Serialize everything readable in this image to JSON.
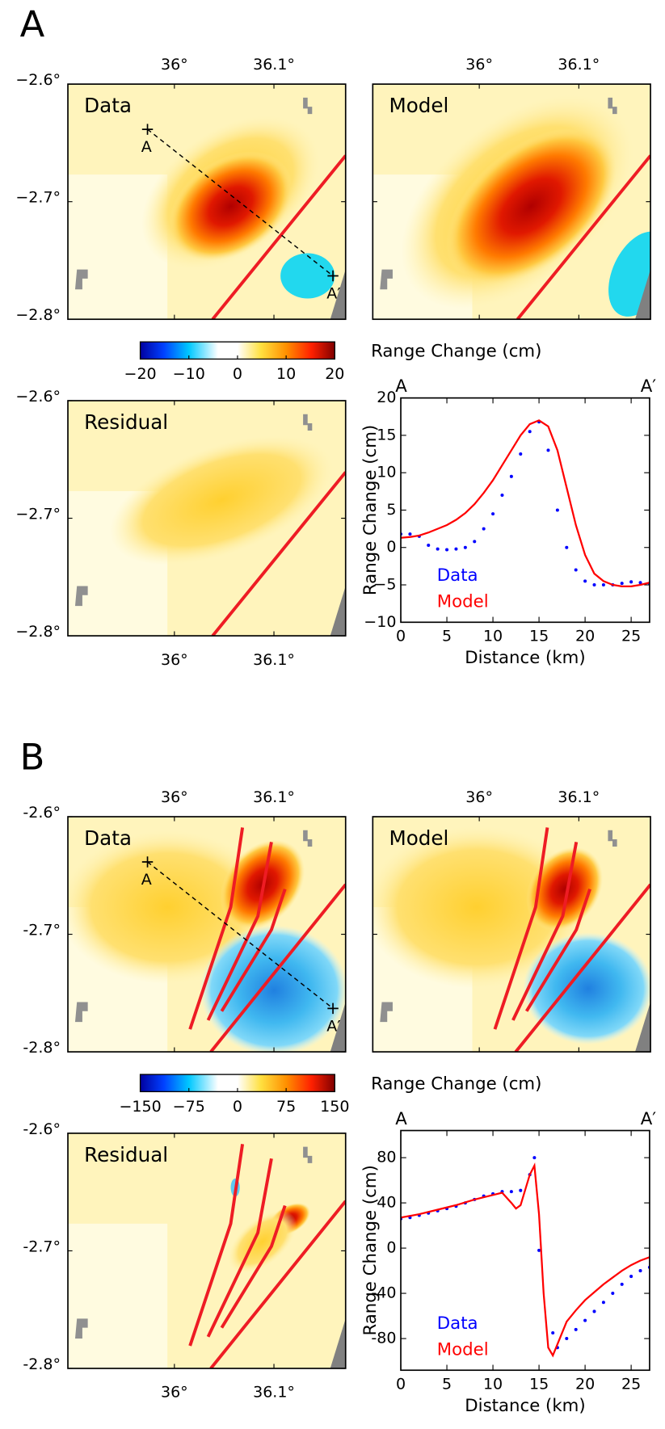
{
  "figure": {
    "map_xlim": [
      35.893,
      36.172
    ],
    "map_ylim": [
      -2.8,
      -2.6
    ],
    "panels": [
      {
        "label": "A",
        "maps": [
          "Data",
          "Model",
          "Residual"
        ],
        "xticks": [
          {
            "value": 36,
            "label": "36°"
          },
          {
            "value": 36.1,
            "label": "36.1°"
          }
        ],
        "yticks": [
          {
            "value": -2.6,
            "label": "−2.6°"
          },
          {
            "value": -2.7,
            "label": "−2.7°"
          },
          {
            "value": -2.8,
            "label": "−2.8°"
          }
        ],
        "profile_ends": [
          "A",
          "A′"
        ],
        "colorbar": {
          "label": "Range Change (cm)",
          "lim": [
            -20,
            20
          ],
          "ticks": [
            {
              "value": -20,
              "label": "−20"
            },
            {
              "value": -10,
              "label": "−10"
            },
            0,
            10,
            20
          ]
        }
      },
      {
        "label": "B",
        "maps": [
          "Data",
          "Model",
          "Residual"
        ],
        "xticks": [
          {
            "value": 36,
            "label": "36°"
          },
          {
            "value": 36.1,
            "label": "36.1°"
          }
        ],
        "yticks": [
          {
            "value": -2.6,
            "label": "-2.6°"
          },
          {
            "value": -2.7,
            "label": "-2.7°"
          },
          {
            "value": -2.8,
            "label": "-2.8°"
          }
        ],
        "profile_ends": [
          "A",
          "A′"
        ],
        "colorbar": {
          "label": "Range Change (cm)",
          "lim": [
            -150,
            150
          ],
          "ticks": [
            {
              "value": -150,
              "label": "−150"
            },
            {
              "value": -75,
              "label": "−75"
            },
            0,
            75,
            150
          ]
        }
      }
    ]
  },
  "chart_data": [
    {
      "type": "line",
      "xlabel": "Distance (km)",
      "ylabel": "Range Change (cm)",
      "xlim": [
        0,
        27
      ],
      "ylim": [
        -10,
        20
      ],
      "xticks": [
        0,
        5,
        10,
        15,
        20,
        25
      ],
      "yticks": [
        {
          "value": -10,
          "label": "−10"
        },
        {
          "value": -5,
          "label": "−5"
        },
        0,
        5,
        10,
        15,
        20
      ],
      "legend": "lower left",
      "series": [
        {
          "name": "Data",
          "color": "#0000ff",
          "style": "dots",
          "x": [
            0,
            1,
            2,
            3,
            4,
            5,
            6,
            7,
            8,
            9,
            10,
            11,
            12,
            13,
            14,
            15,
            16,
            17,
            18,
            19,
            20,
            21,
            22,
            23,
            24,
            25,
            26,
            27
          ],
          "values": [
            1.8,
            1.8,
            1.5,
            0.3,
            -0.2,
            -0.3,
            -0.2,
            0,
            0.8,
            2.5,
            4.5,
            7,
            9.5,
            12.5,
            15.5,
            16.8,
            13,
            5,
            0,
            -3,
            -4.5,
            -5,
            -5,
            -5,
            -4.8,
            -4.6,
            -4.7,
            -4.8
          ]
        },
        {
          "name": "Model",
          "color": "#ff0000",
          "style": "line",
          "x": [
            0,
            1,
            2,
            3,
            4,
            5,
            6,
            7,
            8,
            9,
            10,
            11,
            12,
            13,
            14,
            15,
            16,
            17,
            18,
            19,
            20,
            21,
            22,
            23,
            24,
            25,
            26,
            27
          ],
          "values": [
            1.3,
            1.4,
            1.6,
            2,
            2.5,
            3,
            3.7,
            4.6,
            5.8,
            7.3,
            9,
            11,
            13,
            15,
            16.5,
            17,
            16.2,
            13,
            8,
            3,
            -1,
            -3.5,
            -4.5,
            -5,
            -5.2,
            -5.2,
            -5,
            -4.7
          ]
        }
      ]
    },
    {
      "type": "line",
      "xlabel": "Distance (km)",
      "ylabel": "Range Change (cm)",
      "xlim": [
        0,
        27
      ],
      "ylim": [
        -108,
        104
      ],
      "xticks": [
        0,
        5,
        10,
        15,
        20,
        25
      ],
      "yticks": [
        -80,
        -40,
        0,
        40,
        80
      ],
      "legend": "lower left",
      "series": [
        {
          "name": "Data",
          "color": "#0000ff",
          "style": "dots",
          "x": [
            0,
            1,
            2,
            3,
            4,
            5,
            6,
            7,
            8,
            9,
            10,
            11,
            12,
            13,
            14,
            14.5,
            15,
            16.5,
            17,
            18,
            19,
            20,
            21,
            22,
            23,
            24,
            25,
            26,
            27
          ],
          "values": [
            26,
            27,
            29,
            31,
            33,
            35,
            37,
            40,
            43,
            46,
            48,
            50,
            50,
            51,
            65,
            80,
            -2,
            -75,
            -88,
            -80,
            -72,
            -64,
            -56,
            -48,
            -40,
            -32,
            -25,
            -20,
            -17
          ]
        },
        {
          "name": "Model",
          "color": "#ff0000",
          "style": "line",
          "x": [
            0,
            2,
            4,
            6,
            8,
            10,
            11,
            12,
            12.5,
            13,
            14,
            14.5,
            15,
            15.5,
            16,
            16.5,
            17,
            18,
            19,
            20,
            21,
            22,
            23,
            24,
            25,
            26,
            27
          ],
          "values": [
            27,
            30,
            34,
            38,
            43,
            47,
            49,
            40,
            35,
            38,
            65,
            73,
            30,
            -40,
            -88,
            -95,
            -85,
            -65,
            -55,
            -46,
            -39,
            -32,
            -26,
            -20,
            -15,
            -11,
            -8
          ]
        }
      ]
    }
  ]
}
